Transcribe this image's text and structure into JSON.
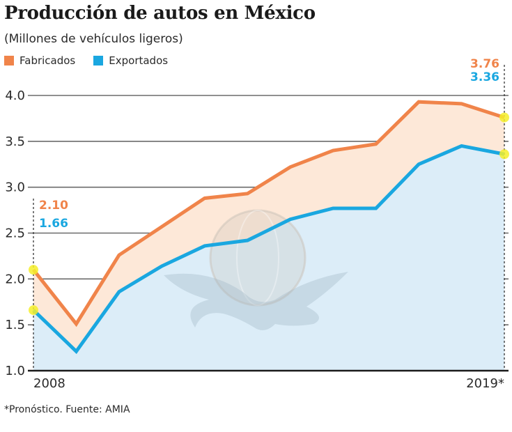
{
  "header": {
    "title": "Producción de autos en México",
    "subtitle": "(Millones de vehículos ligeros)"
  },
  "legend": [
    {
      "label": "Fabricados",
      "color": "#f0844a"
    },
    {
      "label": "Exportados",
      "color": "#1aa7e0"
    }
  ],
  "footnote": "*Pronóstico. Fuente: AMIA",
  "colors": {
    "fabricados_line": "#f0844a",
    "fabricados_fill": "#fde8d8",
    "exportados_line": "#1aa7e0",
    "exportados_fill": "#dcedf8",
    "grid": "#6b6b6b",
    "highlight": "#f5ef2a",
    "watermark": "#c9c2b8"
  },
  "chart_data": {
    "type": "area",
    "title": "Producción de autos en México",
    "subtitle": "(Millones de vehículos ligeros)",
    "xlabel": "",
    "ylabel": "",
    "x": [
      2008,
      2009,
      2010,
      2011,
      2012,
      2013,
      2014,
      2015,
      2016,
      2017,
      2018,
      2019
    ],
    "x_tick_labels": [
      {
        "x": 2008,
        "label": "2008"
      },
      {
        "x": 2019,
        "label": "2019*"
      }
    ],
    "y_ticks": [
      1.0,
      1.5,
      2.0,
      2.5,
      3.0,
      3.5,
      4.0
    ],
    "y_tick_labels": [
      "1.0",
      "1.5",
      "2.0",
      "2.5",
      "3.0",
      "3.5",
      "4.0"
    ],
    "ylim": [
      1.0,
      4.0
    ],
    "grid": true,
    "legend_position": "top-left",
    "series": [
      {
        "name": "Fabricados",
        "values": [
          2.1,
          1.51,
          2.26,
          2.57,
          2.88,
          2.93,
          3.22,
          3.4,
          3.47,
          3.93,
          3.91,
          3.76
        ]
      },
      {
        "name": "Exportados",
        "values": [
          1.66,
          1.21,
          1.86,
          2.14,
          2.36,
          2.42,
          2.65,
          2.77,
          2.77,
          3.25,
          3.45,
          3.36
        ]
      }
    ],
    "annotations": [
      {
        "x": 2008,
        "series": "Fabricados",
        "label": "2.10"
      },
      {
        "x": 2008,
        "series": "Exportados",
        "label": "1.66"
      },
      {
        "x": 2019,
        "series": "Fabricados",
        "label": "3.76"
      },
      {
        "x": 2019,
        "series": "Exportados",
        "label": "3.36"
      }
    ],
    "note": "*Pronóstico"
  }
}
